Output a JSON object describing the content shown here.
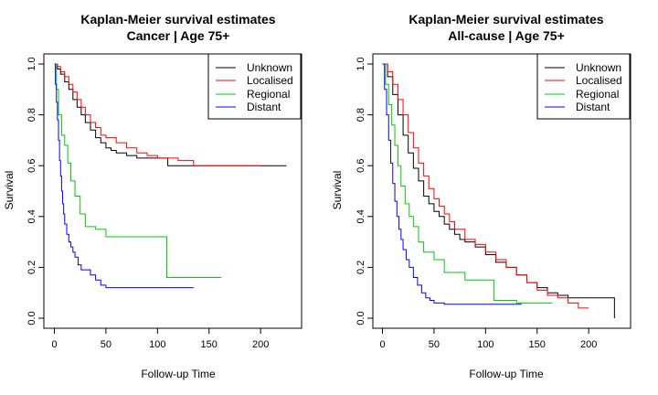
{
  "chart_data": [
    {
      "type": "line",
      "step": true,
      "title": "Kaplan-Meier survival estimates",
      "subtitle": "Cancer | Age 75+",
      "xlabel": "Follow-up Time",
      "ylabel": "Survival",
      "xlim": [
        0,
        230
      ],
      "ylim": [
        0,
        1
      ],
      "xticks": [
        0,
        50,
        100,
        150,
        200
      ],
      "yticks": [
        0.0,
        0.2,
        0.4,
        0.6,
        0.8,
        1.0
      ],
      "legend": {
        "position": "top-right",
        "entries": [
          "Unknown",
          "Localised",
          "Regional",
          "Distant"
        ]
      },
      "series": [
        {
          "name": "Unknown",
          "color": "#000000",
          "x": [
            0,
            3,
            6,
            10,
            14,
            18,
            22,
            26,
            30,
            35,
            40,
            45,
            50,
            55,
            60,
            70,
            80,
            90,
            110,
            120,
            225
          ],
          "y": [
            1.0,
            0.98,
            0.96,
            0.93,
            0.9,
            0.86,
            0.83,
            0.8,
            0.77,
            0.74,
            0.71,
            0.69,
            0.67,
            0.66,
            0.65,
            0.64,
            0.63,
            0.63,
            0.6,
            0.6,
            0.6
          ]
        },
        {
          "name": "Localised",
          "color": "#ff0000",
          "x": [
            0,
            3,
            6,
            10,
            14,
            18,
            22,
            26,
            30,
            35,
            40,
            45,
            50,
            60,
            70,
            80,
            90,
            100,
            110,
            120,
            135,
            200
          ],
          "y": [
            1.0,
            0.99,
            0.97,
            0.95,
            0.92,
            0.89,
            0.86,
            0.83,
            0.8,
            0.77,
            0.75,
            0.72,
            0.71,
            0.69,
            0.67,
            0.65,
            0.64,
            0.63,
            0.63,
            0.62,
            0.6,
            0.6
          ]
        },
        {
          "name": "Regional",
          "color": "#00cc00",
          "x": [
            0,
            2,
            4,
            7,
            10,
            13,
            16,
            20,
            25,
            30,
            40,
            50,
            60,
            80,
            109,
            130,
            162
          ],
          "y": [
            1.0,
            0.9,
            0.8,
            0.72,
            0.68,
            0.61,
            0.54,
            0.48,
            0.41,
            0.36,
            0.35,
            0.32,
            0.32,
            0.32,
            0.16,
            0.16,
            0.16
          ]
        },
        {
          "name": "Distant",
          "color": "#0000ff",
          "x": [
            0,
            1,
            2,
            3,
            4,
            5,
            6,
            7,
            8,
            9,
            10,
            12,
            14,
            16,
            18,
            20,
            23,
            26,
            30,
            35,
            40,
            45,
            50,
            135
          ],
          "y": [
            1.0,
            0.92,
            0.85,
            0.78,
            0.7,
            0.62,
            0.56,
            0.5,
            0.45,
            0.41,
            0.37,
            0.33,
            0.3,
            0.28,
            0.26,
            0.24,
            0.21,
            0.19,
            0.19,
            0.17,
            0.15,
            0.13,
            0.12,
            0.12
          ]
        }
      ]
    },
    {
      "type": "line",
      "step": true,
      "title": "Kaplan-Meier survival estimates",
      "subtitle": "All-cause | Age 75+",
      "xlabel": "Follow-up Time",
      "ylabel": "Survival",
      "xlim": [
        0,
        230
      ],
      "ylim": [
        0,
        1
      ],
      "xticks": [
        0,
        50,
        100,
        150,
        200
      ],
      "yticks": [
        0.0,
        0.2,
        0.4,
        0.6,
        0.8,
        1.0
      ],
      "legend": {
        "position": "top-right",
        "entries": [
          "Unknown",
          "Localised",
          "Regional",
          "Distant"
        ]
      },
      "series": [
        {
          "name": "Unknown",
          "color": "#000000",
          "x": [
            0,
            5,
            10,
            15,
            20,
            25,
            30,
            35,
            40,
            45,
            50,
            55,
            60,
            65,
            70,
            75,
            80,
            90,
            100,
            110,
            120,
            130,
            140,
            150,
            160,
            170,
            180,
            225,
            225
          ],
          "y": [
            1.0,
            0.95,
            0.88,
            0.8,
            0.72,
            0.65,
            0.59,
            0.54,
            0.48,
            0.45,
            0.42,
            0.4,
            0.37,
            0.35,
            0.33,
            0.31,
            0.3,
            0.28,
            0.25,
            0.22,
            0.2,
            0.17,
            0.14,
            0.12,
            0.1,
            0.09,
            0.08,
            0.08,
            0.0
          ]
        },
        {
          "name": "Localised",
          "color": "#ff0000",
          "x": [
            0,
            5,
            10,
            15,
            20,
            25,
            30,
            35,
            40,
            45,
            50,
            55,
            60,
            65,
            70,
            80,
            90,
            100,
            110,
            120,
            130,
            140,
            150,
            160,
            170,
            180,
            190,
            200
          ],
          "y": [
            1.0,
            0.97,
            0.92,
            0.86,
            0.8,
            0.73,
            0.67,
            0.61,
            0.56,
            0.51,
            0.47,
            0.44,
            0.41,
            0.38,
            0.35,
            0.31,
            0.29,
            0.26,
            0.23,
            0.2,
            0.17,
            0.14,
            0.11,
            0.09,
            0.08,
            0.06,
            0.04,
            0.04
          ]
        },
        {
          "name": "Regional",
          "color": "#00cc00",
          "x": [
            0,
            3,
            6,
            9,
            12,
            15,
            18,
            22,
            26,
            30,
            35,
            40,
            50,
            60,
            80,
            108,
            130,
            165
          ],
          "y": [
            1.0,
            0.92,
            0.84,
            0.76,
            0.68,
            0.6,
            0.52,
            0.45,
            0.4,
            0.36,
            0.3,
            0.26,
            0.23,
            0.18,
            0.15,
            0.07,
            0.06,
            0.06
          ]
        },
        {
          "name": "Distant",
          "color": "#0000ff",
          "x": [
            0,
            2,
            4,
            6,
            8,
            10,
            12,
            14,
            16,
            18,
            20,
            23,
            26,
            30,
            34,
            38,
            42,
            46,
            50,
            60,
            80,
            135
          ],
          "y": [
            1.0,
            0.9,
            0.8,
            0.7,
            0.61,
            0.53,
            0.46,
            0.4,
            0.35,
            0.31,
            0.27,
            0.23,
            0.2,
            0.16,
            0.13,
            0.1,
            0.08,
            0.07,
            0.06,
            0.055,
            0.055,
            0.055
          ]
        }
      ]
    }
  ]
}
